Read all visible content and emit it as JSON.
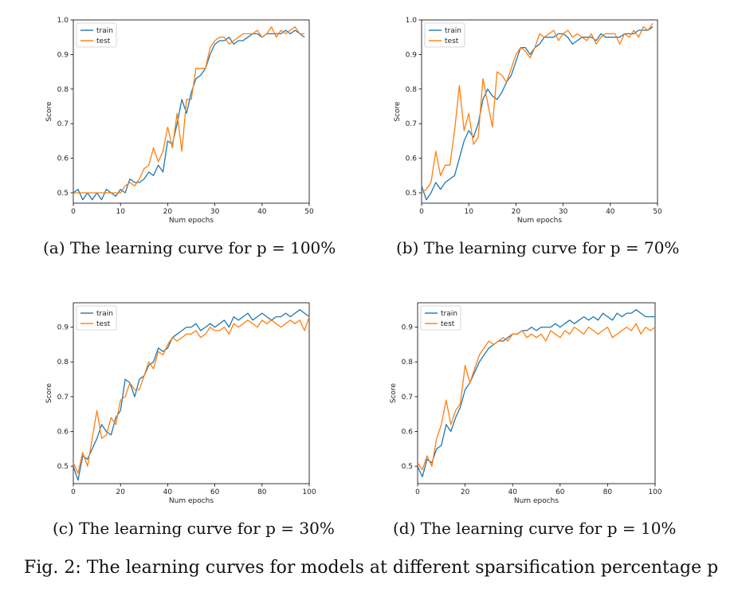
{
  "colors": {
    "train": "#1f77b4",
    "test": "#ff7f0e"
  },
  "figure_caption": "Fig. 2: The learning curves for models at different sparsification percentage p",
  "chart_data": [
    {
      "type": "line",
      "caption": "(a) The learning curve for p = 100%",
      "xlabel": "Num epochs",
      "ylabel": "Score",
      "xlim": [
        0,
        50
      ],
      "ylim": [
        0.47,
        1.0
      ],
      "xticks": [
        0,
        10,
        20,
        30,
        40,
        50
      ],
      "yticks": [
        0.5,
        0.6,
        0.7,
        0.8,
        0.9,
        1.0
      ],
      "ytick_labels": [
        "0.5",
        "0.6",
        "0.7",
        "0.8",
        "0.9",
        "1.0"
      ],
      "legend_position": "upper-left",
      "series": [
        {
          "name": "train",
          "color": "#1f77b4",
          "x": [
            0,
            1,
            2,
            3,
            4,
            5,
            6,
            7,
            8,
            9,
            10,
            11,
            12,
            13,
            14,
            15,
            16,
            17,
            18,
            19,
            20,
            21,
            22,
            23,
            24,
            25,
            26,
            27,
            28,
            29,
            30,
            31,
            32,
            33,
            34,
            35,
            36,
            37,
            38,
            39,
            40,
            41,
            42,
            43,
            44,
            45,
            46,
            47,
            48,
            49
          ],
          "y": [
            0.5,
            0.51,
            0.48,
            0.5,
            0.48,
            0.5,
            0.48,
            0.51,
            0.5,
            0.49,
            0.51,
            0.5,
            0.54,
            0.53,
            0.53,
            0.54,
            0.56,
            0.55,
            0.58,
            0.56,
            0.65,
            0.64,
            0.7,
            0.77,
            0.73,
            0.79,
            0.83,
            0.84,
            0.86,
            0.9,
            0.93,
            0.94,
            0.94,
            0.95,
            0.93,
            0.94,
            0.94,
            0.95,
            0.96,
            0.96,
            0.95,
            0.96,
            0.96,
            0.96,
            0.96,
            0.97,
            0.96,
            0.97,
            0.96,
            0.95
          ]
        },
        {
          "name": "test",
          "color": "#ff7f0e",
          "x": [
            0,
            1,
            2,
            3,
            4,
            5,
            6,
            7,
            8,
            9,
            10,
            11,
            12,
            13,
            14,
            15,
            16,
            17,
            18,
            19,
            20,
            21,
            22,
            23,
            24,
            25,
            26,
            27,
            28,
            29,
            30,
            31,
            32,
            33,
            34,
            35,
            36,
            37,
            38,
            39,
            40,
            41,
            42,
            43,
            44,
            45,
            46,
            47,
            48,
            49
          ],
          "y": [
            0.5,
            0.5,
            0.5,
            0.5,
            0.5,
            0.5,
            0.5,
            0.5,
            0.5,
            0.5,
            0.5,
            0.52,
            0.53,
            0.52,
            0.54,
            0.57,
            0.58,
            0.63,
            0.59,
            0.62,
            0.69,
            0.63,
            0.73,
            0.62,
            0.77,
            0.77,
            0.86,
            0.86,
            0.86,
            0.92,
            0.94,
            0.95,
            0.95,
            0.93,
            0.94,
            0.95,
            0.96,
            0.96,
            0.96,
            0.97,
            0.95,
            0.96,
            0.98,
            0.95,
            0.97,
            0.96,
            0.97,
            0.98,
            0.96,
            0.96
          ]
        }
      ]
    },
    {
      "type": "line",
      "caption": "(b) The learning curve for p = 70%",
      "xlabel": "Num epochs",
      "ylabel": "Score",
      "xlim": [
        0,
        50
      ],
      "ylim": [
        0.47,
        1.0
      ],
      "xticks": [
        0,
        10,
        20,
        30,
        40,
        50
      ],
      "yticks": [
        0.5,
        0.6,
        0.7,
        0.8,
        0.9,
        1.0
      ],
      "ytick_labels": [
        "0.5",
        "0.6",
        "0.7",
        "0.8",
        "0.9",
        "1.0"
      ],
      "legend_position": "upper-left",
      "series": [
        {
          "name": "train",
          "color": "#1f77b4",
          "x": [
            0,
            1,
            2,
            3,
            4,
            5,
            6,
            7,
            8,
            9,
            10,
            11,
            12,
            13,
            14,
            15,
            16,
            17,
            18,
            19,
            20,
            21,
            22,
            23,
            24,
            25,
            26,
            27,
            28,
            29,
            30,
            31,
            32,
            33,
            34,
            35,
            36,
            37,
            38,
            39,
            40,
            41,
            42,
            43,
            44,
            45,
            46,
            47,
            48,
            49
          ],
          "y": [
            0.52,
            0.48,
            0.5,
            0.53,
            0.51,
            0.53,
            0.54,
            0.55,
            0.6,
            0.65,
            0.68,
            0.66,
            0.7,
            0.77,
            0.8,
            0.78,
            0.77,
            0.79,
            0.82,
            0.84,
            0.88,
            0.92,
            0.92,
            0.9,
            0.92,
            0.93,
            0.95,
            0.95,
            0.95,
            0.96,
            0.96,
            0.95,
            0.93,
            0.94,
            0.95,
            0.95,
            0.95,
            0.94,
            0.96,
            0.95,
            0.95,
            0.95,
            0.95,
            0.96,
            0.96,
            0.96,
            0.97,
            0.97,
            0.97,
            0.98
          ]
        },
        {
          "name": "test",
          "color": "#ff7f0e",
          "x": [
            0,
            1,
            2,
            3,
            4,
            5,
            6,
            7,
            8,
            9,
            10,
            11,
            12,
            13,
            14,
            15,
            16,
            17,
            18,
            19,
            20,
            21,
            22,
            23,
            24,
            25,
            26,
            27,
            28,
            29,
            30,
            31,
            32,
            33,
            34,
            35,
            36,
            37,
            38,
            39,
            40,
            41,
            42,
            43,
            44,
            45,
            46,
            47,
            48,
            49
          ],
          "y": [
            0.5,
            0.51,
            0.53,
            0.62,
            0.55,
            0.58,
            0.58,
            0.68,
            0.81,
            0.68,
            0.73,
            0.64,
            0.66,
            0.83,
            0.76,
            0.69,
            0.85,
            0.84,
            0.82,
            0.86,
            0.9,
            0.92,
            0.91,
            0.89,
            0.92,
            0.96,
            0.95,
            0.96,
            0.97,
            0.94,
            0.96,
            0.97,
            0.95,
            0.96,
            0.95,
            0.94,
            0.96,
            0.93,
            0.95,
            0.96,
            0.96,
            0.96,
            0.93,
            0.96,
            0.95,
            0.97,
            0.95,
            0.98,
            0.97,
            0.99
          ]
        }
      ]
    },
    {
      "type": "line",
      "caption": "(c) The learning curve for p = 30%",
      "xlabel": "Num epochs",
      "ylabel": "Score",
      "xlim": [
        0,
        100
      ],
      "ylim": [
        0.45,
        0.97
      ],
      "xticks": [
        0,
        20,
        40,
        60,
        80,
        100
      ],
      "yticks": [
        0.5,
        0.6,
        0.7,
        0.8,
        0.9
      ],
      "ytick_labels": [
        "0.5",
        "0.6",
        "0.7",
        "0.8",
        "0.9"
      ],
      "legend_position": "upper-left",
      "series": [
        {
          "name": "train",
          "color": "#1f77b4",
          "x": [
            0,
            2,
            4,
            6,
            8,
            10,
            12,
            14,
            16,
            18,
            20,
            22,
            24,
            26,
            28,
            30,
            32,
            34,
            36,
            38,
            40,
            42,
            44,
            46,
            48,
            50,
            52,
            54,
            56,
            58,
            60,
            62,
            64,
            66,
            68,
            70,
            72,
            74,
            76,
            78,
            80,
            82,
            84,
            86,
            88,
            90,
            92,
            94,
            96,
            98,
            100
          ],
          "y": [
            0.5,
            0.46,
            0.53,
            0.52,
            0.55,
            0.58,
            0.62,
            0.6,
            0.59,
            0.64,
            0.66,
            0.75,
            0.74,
            0.7,
            0.75,
            0.76,
            0.79,
            0.8,
            0.84,
            0.83,
            0.84,
            0.87,
            0.88,
            0.89,
            0.9,
            0.9,
            0.91,
            0.89,
            0.9,
            0.91,
            0.9,
            0.91,
            0.92,
            0.9,
            0.93,
            0.92,
            0.93,
            0.94,
            0.92,
            0.93,
            0.94,
            0.93,
            0.92,
            0.93,
            0.93,
            0.94,
            0.93,
            0.94,
            0.95,
            0.94,
            0.93
          ]
        },
        {
          "name": "test",
          "color": "#ff7f0e",
          "x": [
            0,
            2,
            4,
            6,
            8,
            10,
            12,
            14,
            16,
            18,
            20,
            22,
            24,
            26,
            28,
            30,
            32,
            34,
            36,
            38,
            40,
            42,
            44,
            46,
            48,
            50,
            52,
            54,
            56,
            58,
            60,
            62,
            64,
            66,
            68,
            70,
            72,
            74,
            76,
            78,
            80,
            82,
            84,
            86,
            88,
            90,
            92,
            94,
            96,
            98,
            100
          ],
          "y": [
            0.51,
            0.48,
            0.54,
            0.5,
            0.58,
            0.66,
            0.58,
            0.59,
            0.64,
            0.62,
            0.69,
            0.7,
            0.74,
            0.72,
            0.72,
            0.76,
            0.8,
            0.78,
            0.83,
            0.82,
            0.85,
            0.87,
            0.86,
            0.87,
            0.88,
            0.88,
            0.89,
            0.87,
            0.88,
            0.9,
            0.89,
            0.89,
            0.9,
            0.88,
            0.91,
            0.9,
            0.91,
            0.92,
            0.91,
            0.9,
            0.92,
            0.91,
            0.92,
            0.91,
            0.9,
            0.91,
            0.92,
            0.91,
            0.92,
            0.89,
            0.93
          ]
        }
      ]
    },
    {
      "type": "line",
      "caption": "(d) The learning curve for p = 10%",
      "xlabel": "Num epochs",
      "ylabel": "Score",
      "xlim": [
        0,
        100
      ],
      "ylim": [
        0.45,
        0.97
      ],
      "xticks": [
        0,
        20,
        40,
        60,
        80,
        100
      ],
      "yticks": [
        0.5,
        0.6,
        0.7,
        0.8,
        0.9
      ],
      "ytick_labels": [
        "0.5",
        "0.6",
        "0.7",
        "0.8",
        "0.9"
      ],
      "legend_position": "upper-left",
      "series": [
        {
          "name": "train",
          "color": "#1f77b4",
          "x": [
            0,
            2,
            4,
            6,
            8,
            10,
            12,
            14,
            16,
            18,
            20,
            22,
            24,
            26,
            28,
            30,
            32,
            34,
            36,
            38,
            40,
            42,
            44,
            46,
            48,
            50,
            52,
            54,
            56,
            58,
            60,
            62,
            64,
            66,
            68,
            70,
            72,
            74,
            76,
            78,
            80,
            82,
            84,
            86,
            88,
            90,
            92,
            94,
            96,
            98,
            100
          ],
          "y": [
            0.5,
            0.47,
            0.52,
            0.51,
            0.55,
            0.56,
            0.62,
            0.6,
            0.64,
            0.67,
            0.72,
            0.74,
            0.77,
            0.8,
            0.82,
            0.84,
            0.85,
            0.86,
            0.86,
            0.87,
            0.88,
            0.88,
            0.89,
            0.89,
            0.9,
            0.89,
            0.9,
            0.9,
            0.9,
            0.91,
            0.9,
            0.91,
            0.92,
            0.91,
            0.92,
            0.93,
            0.92,
            0.93,
            0.92,
            0.94,
            0.93,
            0.92,
            0.94,
            0.93,
            0.94,
            0.94,
            0.95,
            0.94,
            0.93,
            0.93,
            0.93
          ]
        },
        {
          "name": "test",
          "color": "#ff7f0e",
          "x": [
            0,
            2,
            4,
            6,
            8,
            10,
            12,
            14,
            16,
            18,
            20,
            22,
            24,
            26,
            28,
            30,
            32,
            34,
            36,
            38,
            40,
            42,
            44,
            46,
            48,
            50,
            52,
            54,
            56,
            58,
            60,
            62,
            64,
            66,
            68,
            70,
            72,
            74,
            76,
            78,
            80,
            82,
            84,
            86,
            88,
            90,
            92,
            94,
            96,
            98,
            100
          ],
          "y": [
            0.51,
            0.49,
            0.53,
            0.5,
            0.58,
            0.62,
            0.69,
            0.62,
            0.66,
            0.68,
            0.79,
            0.74,
            0.78,
            0.82,
            0.84,
            0.86,
            0.85,
            0.86,
            0.87,
            0.86,
            0.88,
            0.88,
            0.89,
            0.87,
            0.88,
            0.87,
            0.88,
            0.86,
            0.89,
            0.88,
            0.87,
            0.89,
            0.88,
            0.9,
            0.89,
            0.88,
            0.9,
            0.89,
            0.88,
            0.89,
            0.9,
            0.87,
            0.88,
            0.89,
            0.9,
            0.89,
            0.91,
            0.88,
            0.9,
            0.89,
            0.9
          ]
        }
      ]
    }
  ]
}
